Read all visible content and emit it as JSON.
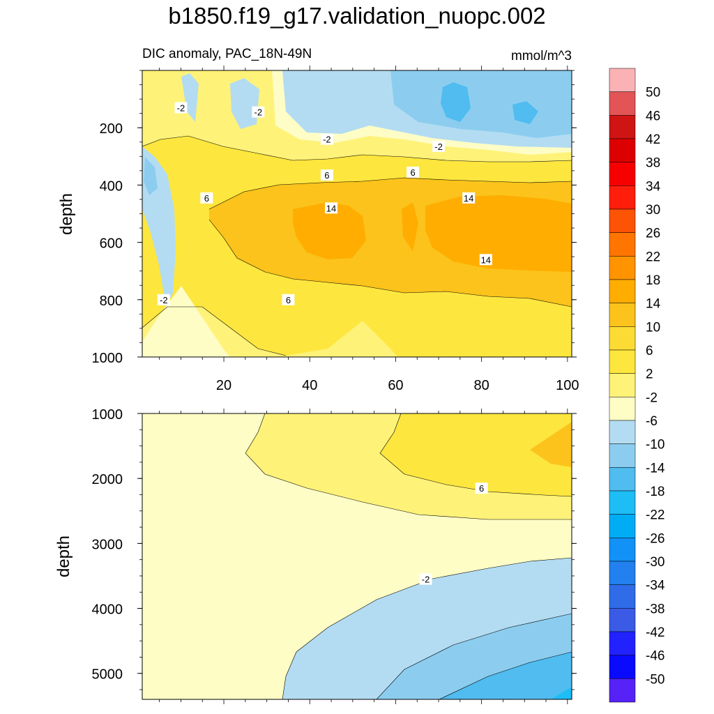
{
  "chart_data": {
    "type": "contour",
    "title": "b1850.f19_g17.validation_nuopc.002",
    "left_subtitle": "DIC anomaly, PAC_18N-49N",
    "units": "mmol/m^3",
    "x_ticks": [
      20,
      40,
      60,
      80,
      100
    ],
    "x_range": [
      1,
      101
    ],
    "colorbar": {
      "labels": [
        "50",
        "46",
        "42",
        "38",
        "34",
        "30",
        "26",
        "22",
        "18",
        "14",
        "10",
        "6",
        "2",
        "-2",
        "-6",
        "-10",
        "-14",
        "-18",
        "-22",
        "-26",
        "-30",
        "-34",
        "-38",
        "-42",
        "-46",
        "-50"
      ],
      "colors": [
        "#fbb2b4",
        "#e35456",
        "#cf1414",
        "#dd0000",
        "#f70000",
        "#ff1e0c",
        "#fd5304",
        "#ff7500",
        "#ff9300",
        "#ffad00",
        "#fbc31b",
        "#fcdc34",
        "#fde63e",
        "#fef279",
        "#fefdc6",
        "#b3dcf2",
        "#8ccdef",
        "#50bcf0",
        "#1ebdf5",
        "#00adf5",
        "#1291f7",
        "#2280ef",
        "#306ce8",
        "#3b5ae6",
        "#2222ff",
        "#0a0afc",
        "#5622f7"
      ]
    },
    "panels": [
      {
        "name": "upper-ocean",
        "ylabel": "depth",
        "y_range": [
          0,
          1000
        ],
        "y_ticks": [
          200,
          400,
          600,
          800,
          1000
        ],
        "contour_labels": [
          {
            "text": "-2",
            "x": 10,
            "y": 130
          },
          {
            "text": "-2",
            "x": 28,
            "y": 145
          },
          {
            "text": "-2",
            "x": 44,
            "y": 240
          },
          {
            "text": "-2",
            "x": 70,
            "y": 265
          },
          {
            "text": "6",
            "x": 44,
            "y": 365
          },
          {
            "text": "6",
            "x": 64,
            "y": 355
          },
          {
            "text": "6",
            "x": 16,
            "y": 445
          },
          {
            "text": "14",
            "x": 45,
            "y": 480
          },
          {
            "text": "14",
            "x": 77,
            "y": 445
          },
          {
            "text": "14",
            "x": 81,
            "y": 660
          },
          {
            "text": "-2",
            "x": 6,
            "y": 800
          },
          {
            "text": "6",
            "x": 35,
            "y": 800
          }
        ]
      },
      {
        "name": "deep-ocean",
        "ylabel": "depth",
        "y_range": [
          1000,
          5400
        ],
        "y_ticks": [
          1000,
          2000,
          3000,
          4000,
          5000
        ],
        "contour_labels": [
          {
            "text": "6",
            "x": 80,
            "y": 2150
          },
          {
            "text": "-2",
            "x": 67,
            "y": 3550
          }
        ]
      }
    ]
  }
}
